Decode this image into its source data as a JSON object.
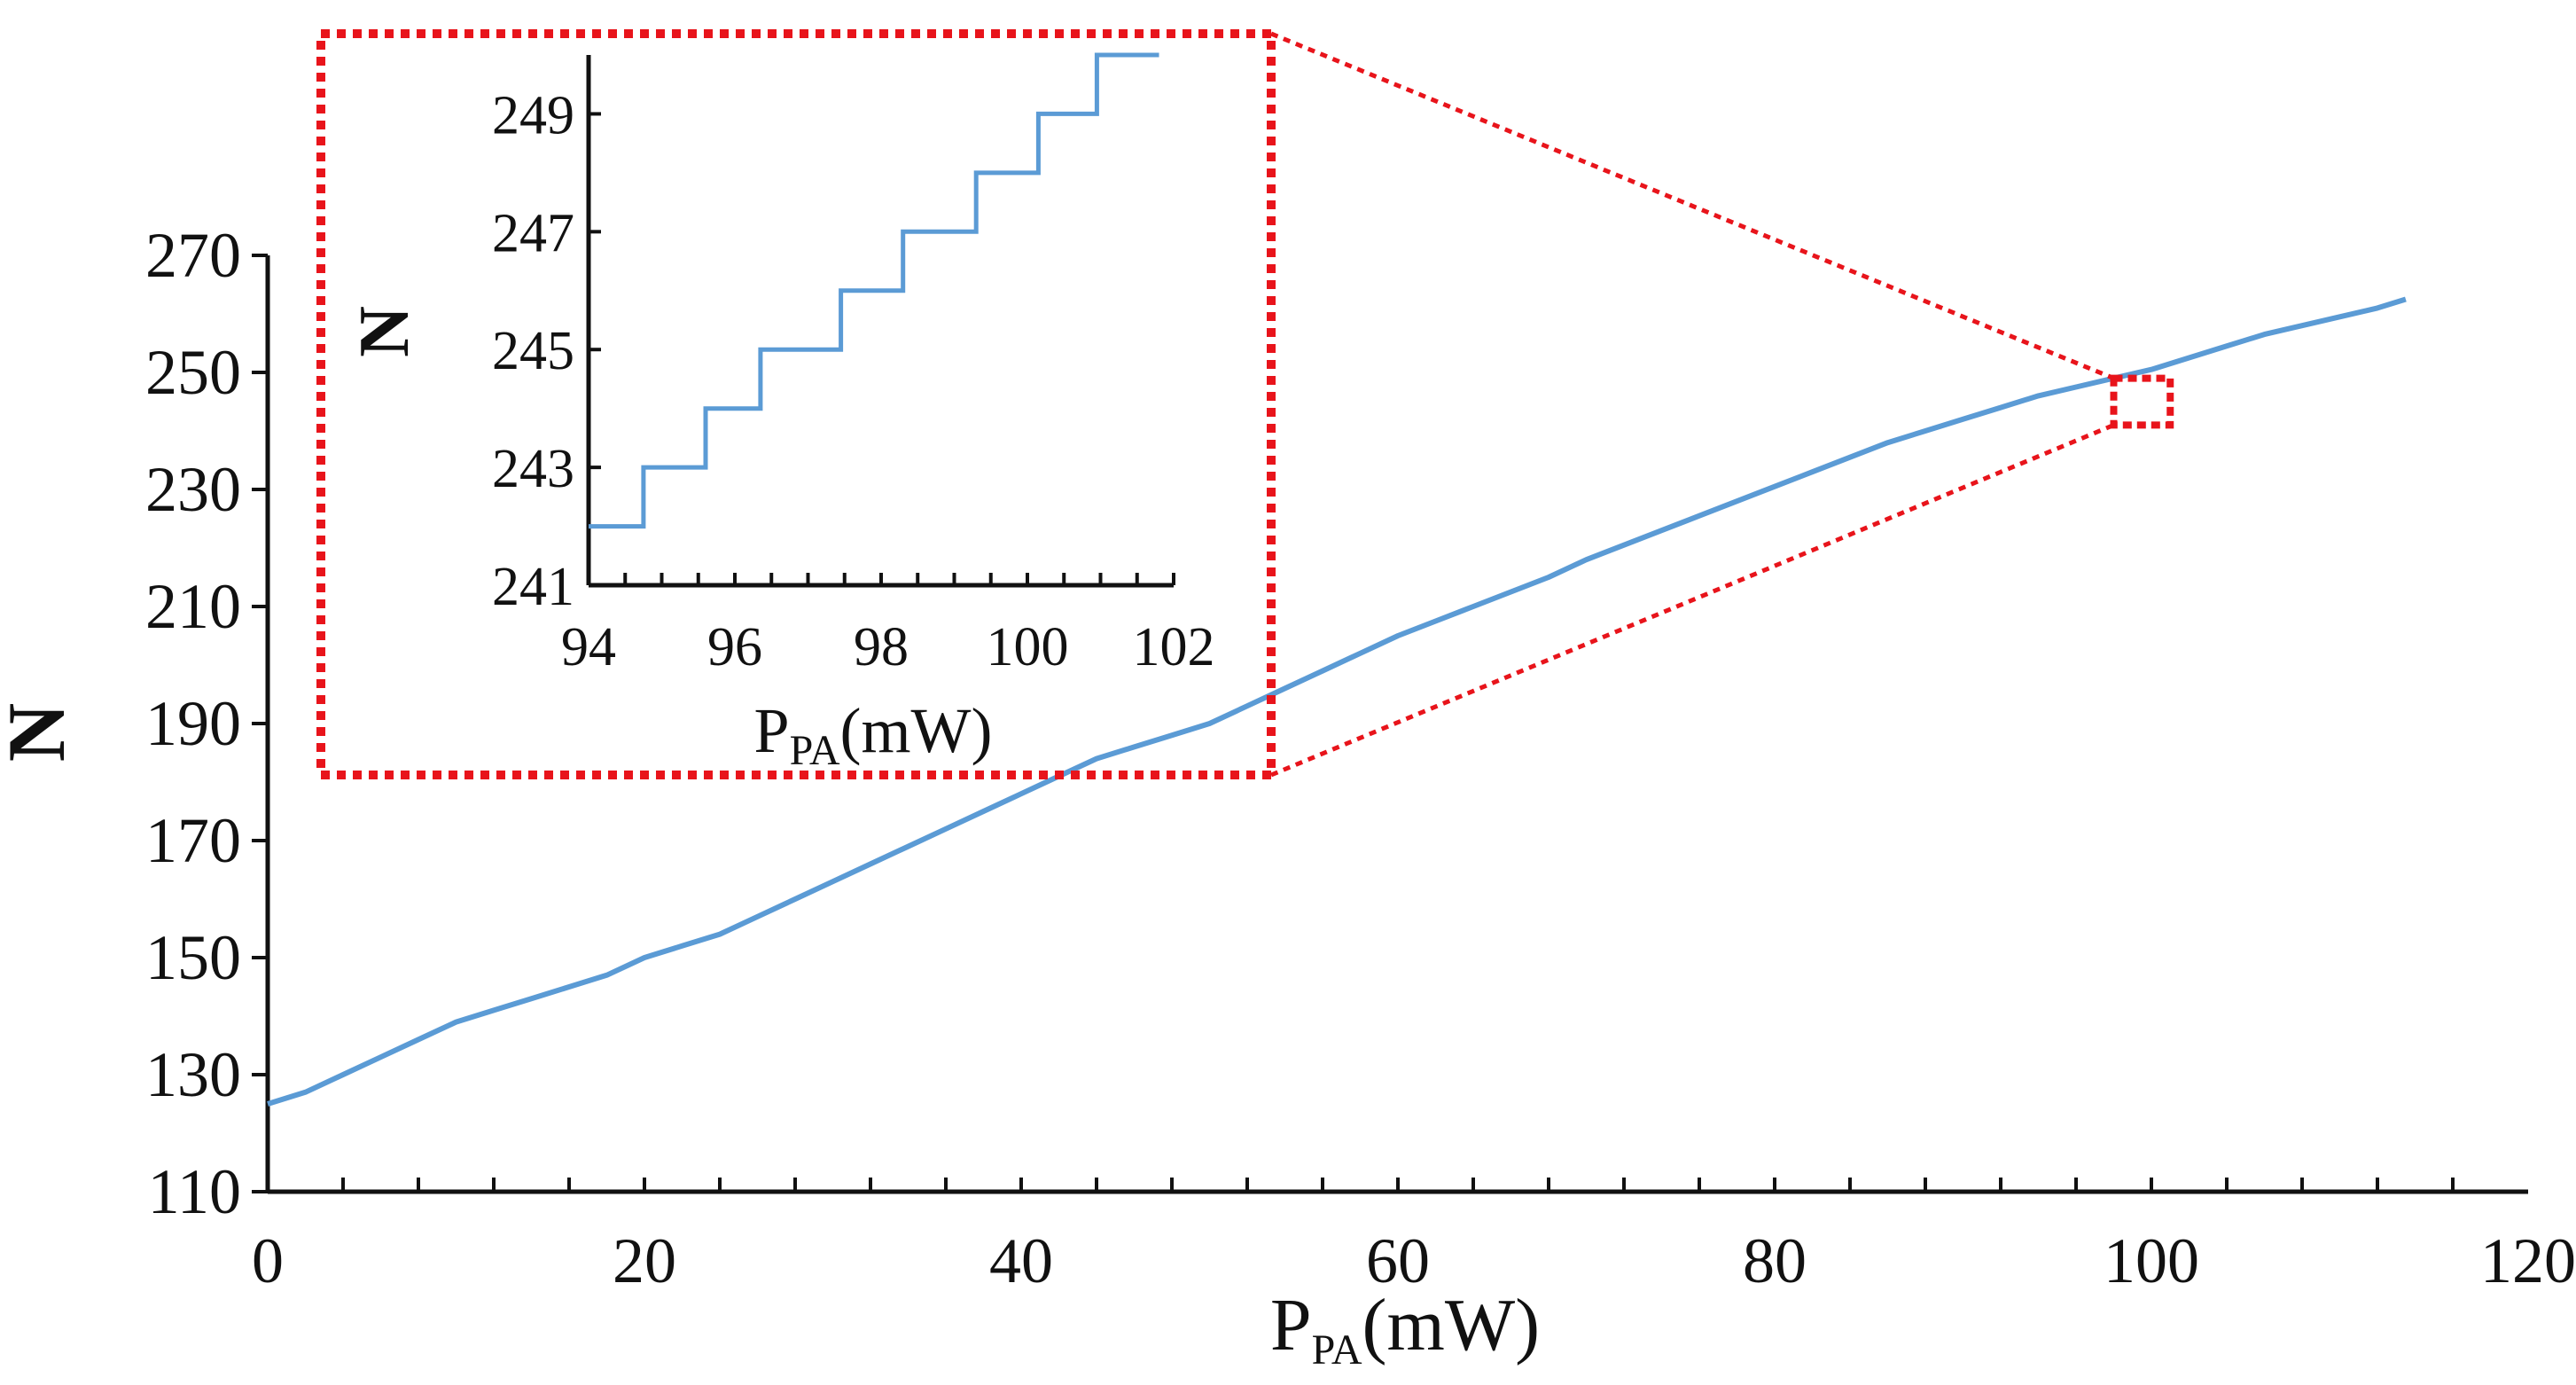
{
  "colors": {
    "line": "#5b9bd5",
    "zoom": "#e8141b",
    "axis": "#111111",
    "background": "#ffffff"
  },
  "chart_data": [
    {
      "name": "main",
      "type": "line",
      "title": "",
      "xlabel_main": "P",
      "xlabel_sub": "PA",
      "xlabel_unit": "(mW)",
      "ylabel": "N",
      "xlim": [
        0,
        120
      ],
      "ylim": [
        110,
        270
      ],
      "xticks": [
        0,
        20,
        40,
        60,
        80,
        100,
        120
      ],
      "yticks": [
        110,
        130,
        150,
        170,
        190,
        210,
        230,
        250,
        270
      ],
      "x_minor_step": 4,
      "series": [
        {
          "name": "N",
          "x": [
            0,
            2,
            4,
            6,
            8,
            10,
            12,
            14,
            16,
            18,
            20,
            22,
            24,
            26,
            28,
            30,
            32,
            34,
            36,
            38,
            40,
            42,
            44,
            46,
            48,
            50,
            52,
            54,
            56,
            58,
            60,
            62,
            64,
            66,
            68,
            70,
            72,
            74,
            76,
            78,
            80,
            82,
            84,
            86,
            88,
            90,
            92,
            94,
            96,
            98,
            100,
            102,
            104,
            106,
            108,
            110,
            112,
            113.5
          ],
          "y": [
            125,
            127,
            130,
            133,
            136,
            139,
            141,
            143,
            145,
            147,
            150,
            152,
            154,
            157,
            160,
            163,
            166,
            169,
            172,
            175,
            178,
            181,
            184,
            186,
            188,
            190,
            193,
            196,
            199,
            202,
            205,
            207.5,
            210,
            212.5,
            215,
            218,
            220.5,
            223,
            225.5,
            228,
            230.5,
            233,
            235.5,
            238,
            240,
            242,
            244,
            246,
            247.5,
            249,
            250.5,
            252.5,
            254.5,
            256.5,
            258,
            259.5,
            261,
            262.5
          ]
        }
      ],
      "zoom_region": {
        "x": [
          98,
          101
        ],
        "y": [
          241,
          249
        ]
      }
    },
    {
      "name": "inset",
      "type": "line",
      "title": "",
      "xlabel_main": "P",
      "xlabel_sub": "PA",
      "xlabel_unit": "(mW)",
      "ylabel": "N",
      "xlim": [
        94,
        102
      ],
      "ylim": [
        241,
        250
      ],
      "xticks": [
        94,
        96,
        98,
        100,
        102
      ],
      "xtick_labels": [
        "94",
        "96",
        "98",
        "100",
        "102"
      ],
      "yticks": [
        241,
        243,
        245,
        247,
        249
      ],
      "ytick_labels": [
        "241",
        "243",
        "245",
        "247",
        "249"
      ],
      "x_minor_step": 0.5,
      "series": [
        {
          "name": "N (step)",
          "x": [
            94.0,
            94.75,
            94.75,
            95.6,
            95.6,
            96.35,
            96.35,
            97.45,
            97.45,
            98.3,
            98.3,
            99.3,
            99.3,
            100.15,
            100.15,
            100.95,
            100.95,
            101.8
          ],
          "y": [
            242,
            242,
            243,
            243,
            244,
            244,
            245,
            245,
            246,
            246,
            247,
            247,
            248,
            248,
            249,
            249,
            250,
            250
          ]
        }
      ]
    }
  ]
}
